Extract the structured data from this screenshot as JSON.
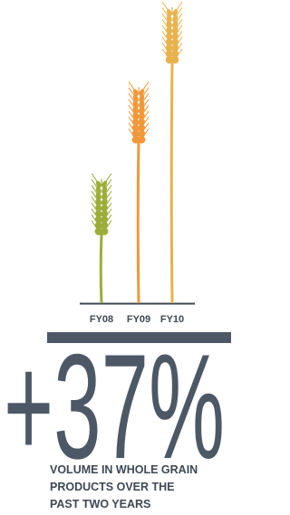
{
  "chart_data": {
    "type": "pictograph",
    "categories": [
      "FY08",
      "FY09",
      "FY10"
    ],
    "values": [
      42,
      73,
      100
    ],
    "colors": [
      "#9cad3a",
      "#f0983a",
      "#e9b24c"
    ],
    "headline": "+37%",
    "caption": [
      "VOLUME IN WHOLE GRAIN",
      "PRODUCTS OVER THE",
      "PAST TWO YEARS"
    ]
  }
}
